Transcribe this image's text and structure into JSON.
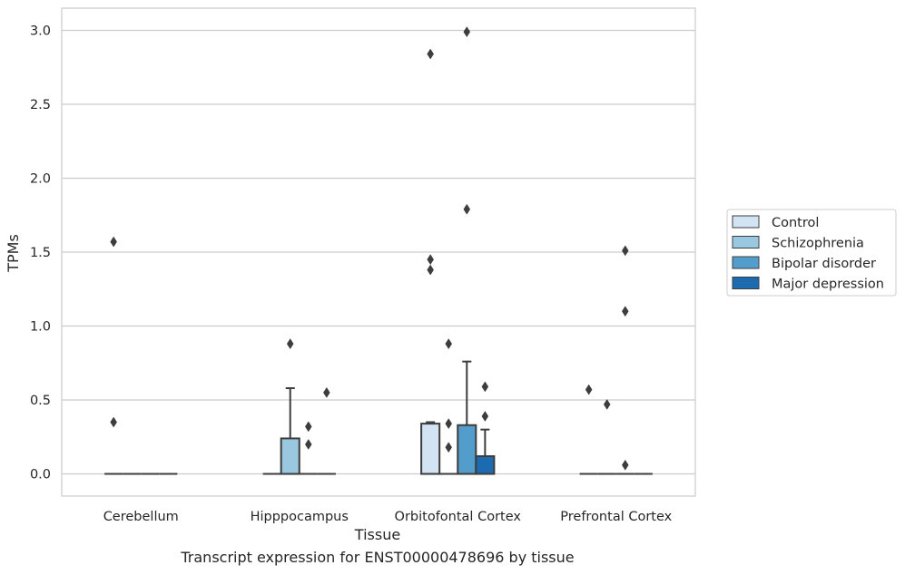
{
  "chart_data": {
    "type": "box",
    "xlabel": "Tissue",
    "ylabel": "TPMs",
    "caption": "Transcript expression for ENST00000478696 by tissue",
    "categories": [
      "Cerebellum",
      "Hipppocampus",
      "Orbitofontal Cortex",
      "Prefrontal Cortex"
    ],
    "ylim": [
      -0.15,
      3.15
    ],
    "yticks": [
      0.0,
      0.5,
      1.0,
      1.5,
      2.0,
      2.5,
      3.0
    ],
    "ytick_labels": [
      "0.0",
      "0.5",
      "1.0",
      "1.5",
      "2.0",
      "2.5",
      "3.0"
    ],
    "grid": "horizontal",
    "legend_position": "center-right",
    "series": [
      {
        "name": "Control",
        "color": "#d2e3f3",
        "boxes": [
          {
            "category": "Cerebellum",
            "whislo": 0,
            "q1": 0,
            "median": 0,
            "q3": 0,
            "whishi": 0,
            "fliers": [
              1.57,
              0.35
            ]
          },
          {
            "category": "Hipppocampus",
            "whislo": 0,
            "q1": 0,
            "median": 0,
            "q3": 0,
            "whishi": 0,
            "fliers": []
          },
          {
            "category": "Orbitofontal Cortex",
            "whislo": 0,
            "q1": 0,
            "median": 0,
            "q3": 0.34,
            "whishi": 0.35,
            "fliers": [
              2.84,
              1.45,
              1.38
            ]
          },
          {
            "category": "Prefrontal Cortex",
            "whislo": 0,
            "q1": 0,
            "median": 0,
            "q3": 0,
            "whishi": 0,
            "fliers": [
              0.57
            ]
          }
        ]
      },
      {
        "name": "Schizophrenia",
        "color": "#9ac8e0",
        "boxes": [
          {
            "category": "Cerebellum",
            "whislo": 0,
            "q1": 0,
            "median": 0,
            "q3": 0,
            "whishi": 0,
            "fliers": []
          },
          {
            "category": "Hipppocampus",
            "whislo": 0,
            "q1": 0,
            "median": 0,
            "q3": 0.24,
            "whishi": 0.58,
            "fliers": [
              0.88
            ]
          },
          {
            "category": "Orbitofontal Cortex",
            "whislo": 0,
            "q1": 0,
            "median": 0,
            "q3": 0,
            "whishi": 0,
            "fliers": [
              0.88,
              0.34,
              0.18
            ]
          },
          {
            "category": "Prefrontal Cortex",
            "whislo": 0,
            "q1": 0,
            "median": 0,
            "q3": 0,
            "whishi": 0,
            "fliers": [
              0.47
            ]
          }
        ]
      },
      {
        "name": "Bipolar disorder",
        "color": "#529dcc",
        "boxes": [
          {
            "category": "Cerebellum",
            "whislo": 0,
            "q1": 0,
            "median": 0,
            "q3": 0,
            "whishi": 0,
            "fliers": []
          },
          {
            "category": "Hipppocampus",
            "whislo": 0,
            "q1": 0,
            "median": 0,
            "q3": 0,
            "whishi": 0,
            "fliers": [
              0.32,
              0.2
            ]
          },
          {
            "category": "Orbitofontal Cortex",
            "whislo": 0,
            "q1": 0,
            "median": 0,
            "q3": 0.33,
            "whishi": 0.76,
            "fliers": [
              2.99,
              1.79
            ]
          },
          {
            "category": "Prefrontal Cortex",
            "whislo": 0,
            "q1": 0,
            "median": 0,
            "q3": 0,
            "whishi": 0,
            "fliers": [
              1.51,
              1.1,
              0.06
            ]
          }
        ]
      },
      {
        "name": "Major depression",
        "color": "#1c6aaf",
        "boxes": [
          {
            "category": "Cerebellum",
            "whislo": 0,
            "q1": 0,
            "median": 0,
            "q3": 0,
            "whishi": 0,
            "fliers": []
          },
          {
            "category": "Hipppocampus",
            "whislo": 0,
            "q1": 0,
            "median": 0,
            "q3": 0,
            "whishi": 0,
            "fliers": [
              0.55
            ]
          },
          {
            "category": "Orbitofontal Cortex",
            "whislo": 0,
            "q1": 0,
            "median": 0,
            "q3": 0.12,
            "whishi": 0.3,
            "fliers": [
              0.59,
              0.39
            ]
          },
          {
            "category": "Prefrontal Cortex",
            "whislo": 0,
            "q1": 0,
            "median": 0,
            "q3": 0,
            "whishi": 0,
            "fliers": []
          }
        ]
      }
    ]
  }
}
